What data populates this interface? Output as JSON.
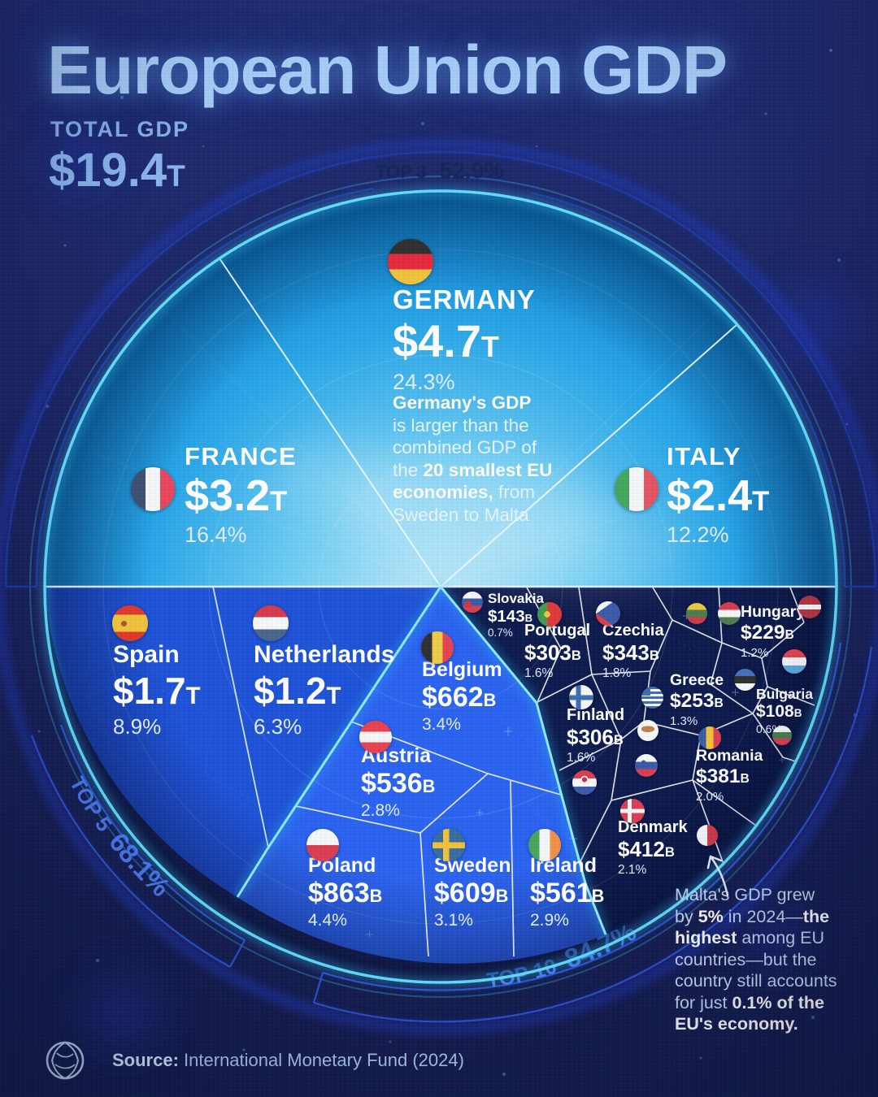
{
  "title": "European Union GDP",
  "total": {
    "label": "TOTAL GDP",
    "value": "$19.4",
    "unit": "T"
  },
  "arcs": {
    "top3": {
      "label": "TOP 3",
      "value": "52.9%"
    },
    "top5": {
      "label": "TOP 5",
      "value": "68.1%"
    },
    "top10": {
      "label": "TOP 10",
      "value": "84.7%"
    }
  },
  "countries": {
    "germany": {
      "name": "GERMANY",
      "value": "$4.7",
      "unit": "T",
      "pct": "24.3%"
    },
    "france": {
      "name": "FRANCE",
      "value": "$3.2",
      "unit": "T",
      "pct": "16.4%"
    },
    "italy": {
      "name": "ITALY",
      "value": "$2.4",
      "unit": "T",
      "pct": "12.2%"
    },
    "spain": {
      "name": "Spain",
      "value": "$1.7",
      "unit": "T",
      "pct": "8.9%"
    },
    "netherlands": {
      "name": "Netherlands",
      "value": "$1.2",
      "unit": "T",
      "pct": "6.3%"
    },
    "belgium": {
      "name": "Belgium",
      "value": "$662",
      "unit": "B",
      "pct": "3.4%"
    },
    "austria": {
      "name": "Austria",
      "value": "$536",
      "unit": "B",
      "pct": "2.8%"
    },
    "poland": {
      "name": "Poland",
      "value": "$863",
      "unit": "B",
      "pct": "4.4%"
    },
    "sweden": {
      "name": "Sweden",
      "value": "$609",
      "unit": "B",
      "pct": "3.1%"
    },
    "ireland": {
      "name": "Ireland",
      "value": "$561",
      "unit": "B",
      "pct": "2.9%"
    },
    "slovakia": {
      "name": "Slovakia",
      "value": "$143",
      "unit": "B",
      "pct": "0.7%"
    },
    "portugal": {
      "name": "Portugal",
      "value": "$303",
      "unit": "B",
      "pct": "1.6%"
    },
    "czechia": {
      "name": "Czechia",
      "value": "$343",
      "unit": "B",
      "pct": "1.8%"
    },
    "hungary": {
      "name": "Hungary",
      "value": "$229",
      "unit": "B",
      "pct": "1.2%"
    },
    "greece": {
      "name": "Greece",
      "value": "$253",
      "unit": "B",
      "pct": "1.3%"
    },
    "bulgaria": {
      "name": "Bulgaria",
      "value": "$108",
      "unit": "B",
      "pct": "0.6%"
    },
    "finland": {
      "name": "Finland",
      "value": "$306",
      "unit": "B",
      "pct": "1.6%"
    },
    "romania": {
      "name": "Romania",
      "value": "$381",
      "unit": "B",
      "pct": "2.0%"
    },
    "denmark": {
      "name": "Denmark",
      "value": "$412",
      "unit": "B",
      "pct": "2.1%"
    }
  },
  "notes": {
    "germany_lines": [
      [
        {
          "t": "Germany's GDP",
          "b": 1
        }
      ],
      [
        {
          "t": "is larger than the"
        }
      ],
      [
        {
          "t": "combined GDP of"
        }
      ],
      [
        {
          "t": "the "
        },
        {
          "t": "20 smallest EU",
          "b": 1
        }
      ],
      [
        {
          "t": "economies,",
          "b": 1
        },
        {
          "t": " from"
        }
      ],
      [
        {
          "t": "Sweden to Malta"
        }
      ]
    ],
    "malta_lines": [
      [
        {
          "t": "Malta's GDP grew"
        }
      ],
      [
        {
          "t": "by "
        },
        {
          "t": "5%",
          "b": 1
        },
        {
          "t": " in 2024—"
        },
        {
          "t": "the",
          "b": 1
        }
      ],
      [
        {
          "t": "highest",
          "b": 1
        },
        {
          "t": " among EU"
        }
      ],
      [
        {
          "t": "countries—but the"
        }
      ],
      [
        {
          "t": "country still accounts"
        }
      ],
      [
        {
          "t": "for just "
        },
        {
          "t": "0.1% of the",
          "b": 1
        }
      ],
      [
        {
          "t": "EU's economy.",
          "b": 1
        }
      ]
    ]
  },
  "source": {
    "label": "Source:",
    "text": "International Monetary Fund (2024)"
  },
  "icons": {
    "flags_labeled": [
      "germany-flag-icon",
      "france-flag-icon",
      "italy-flag-icon",
      "spain-flag-icon",
      "netherlands-flag-icon",
      "belgium-flag-icon",
      "austria-flag-icon",
      "poland-flag-icon",
      "sweden-flag-icon",
      "ireland-flag-icon",
      "slovakia-flag-icon",
      "portugal-flag-icon",
      "czechia-flag-icon",
      "hungary-flag-icon",
      "greece-flag-icon",
      "bulgaria-flag-icon",
      "finland-flag-icon",
      "romania-flag-icon",
      "denmark-flag-icon"
    ],
    "flags_unlabeled": [
      "lithuania-flag-icon",
      "latvia-flag-icon",
      "luxembourg-flag-icon",
      "estonia-flag-icon",
      "cyprus-flag-icon",
      "slovenia-flag-icon",
      "croatia-flag-icon",
      "malta-flag-icon"
    ],
    "logo": "voronoi-logo"
  },
  "colors": {
    "background": "#1a2462",
    "top_half_light": "#bfe9fa",
    "top_half_mid": "#2aa8ea",
    "blue_cell": "#1e52d8",
    "bright_blue_cell": "#2b63f0",
    "dark_cell": "#0d1a4e",
    "rim_cyan": "#63dcfc",
    "outer_ring_blue": "#2340d8",
    "arc_label_blue": "#4a78ee",
    "title_blue": "#a5cbf7"
  },
  "chart_data": {
    "type": "pie",
    "style": "circular voronoi treemap",
    "title": "European Union GDP",
    "total_gdp": "$19.4T",
    "items": [
      {
        "country": "Germany",
        "gdp": "$4.7T",
        "gdp_billusd": 4700,
        "share_pct": 24.3
      },
      {
        "country": "France",
        "gdp": "$3.2T",
        "gdp_billusd": 3200,
        "share_pct": 16.4
      },
      {
        "country": "Italy",
        "gdp": "$2.4T",
        "gdp_billusd": 2400,
        "share_pct": 12.2
      },
      {
        "country": "Spain",
        "gdp": "$1.7T",
        "gdp_billusd": 1700,
        "share_pct": 8.9
      },
      {
        "country": "Netherlands",
        "gdp": "$1.2T",
        "gdp_billusd": 1200,
        "share_pct": 6.3
      },
      {
        "country": "Poland",
        "gdp": "$863B",
        "gdp_billusd": 863,
        "share_pct": 4.4
      },
      {
        "country": "Belgium",
        "gdp": "$662B",
        "gdp_billusd": 662,
        "share_pct": 3.4
      },
      {
        "country": "Sweden",
        "gdp": "$609B",
        "gdp_billusd": 609,
        "share_pct": 3.1
      },
      {
        "country": "Ireland",
        "gdp": "$561B",
        "gdp_billusd": 561,
        "share_pct": 2.9
      },
      {
        "country": "Austria",
        "gdp": "$536B",
        "gdp_billusd": 536,
        "share_pct": 2.8
      },
      {
        "country": "Denmark",
        "gdp": "$412B",
        "gdp_billusd": 412,
        "share_pct": 2.1
      },
      {
        "country": "Romania",
        "gdp": "$381B",
        "gdp_billusd": 381,
        "share_pct": 2.0
      },
      {
        "country": "Czechia",
        "gdp": "$343B",
        "gdp_billusd": 343,
        "share_pct": 1.8
      },
      {
        "country": "Finland",
        "gdp": "$306B",
        "gdp_billusd": 306,
        "share_pct": 1.6
      },
      {
        "country": "Portugal",
        "gdp": "$303B",
        "gdp_billusd": 303,
        "share_pct": 1.6
      },
      {
        "country": "Greece",
        "gdp": "$253B",
        "gdp_billusd": 253,
        "share_pct": 1.3
      },
      {
        "country": "Hungary",
        "gdp": "$229B",
        "gdp_billusd": 229,
        "share_pct": 1.2
      },
      {
        "country": "Slovakia",
        "gdp": "$143B",
        "gdp_billusd": 143,
        "share_pct": 0.7
      },
      {
        "country": "Bulgaria",
        "gdp": "$108B",
        "gdp_billusd": 108,
        "share_pct": 0.6
      }
    ],
    "flag_only_countries": [
      "Lithuania",
      "Latvia",
      "Luxembourg",
      "Estonia",
      "Cyprus",
      "Slovenia",
      "Croatia",
      "Malta"
    ],
    "annotations": {
      "top3_share_pct": 52.9,
      "top5_share_pct": 68.1,
      "top10_share_pct": 84.7,
      "germany_note": "Germany's GDP is larger than the combined GDP of the 20 smallest EU economies, from Sweden to Malta",
      "malta_note": "Malta's GDP grew by 5% in 2024—the highest among EU countries—but the country still accounts for just 0.1% of the EU's economy."
    },
    "legend_position": "in-cell labels",
    "grid": false
  }
}
